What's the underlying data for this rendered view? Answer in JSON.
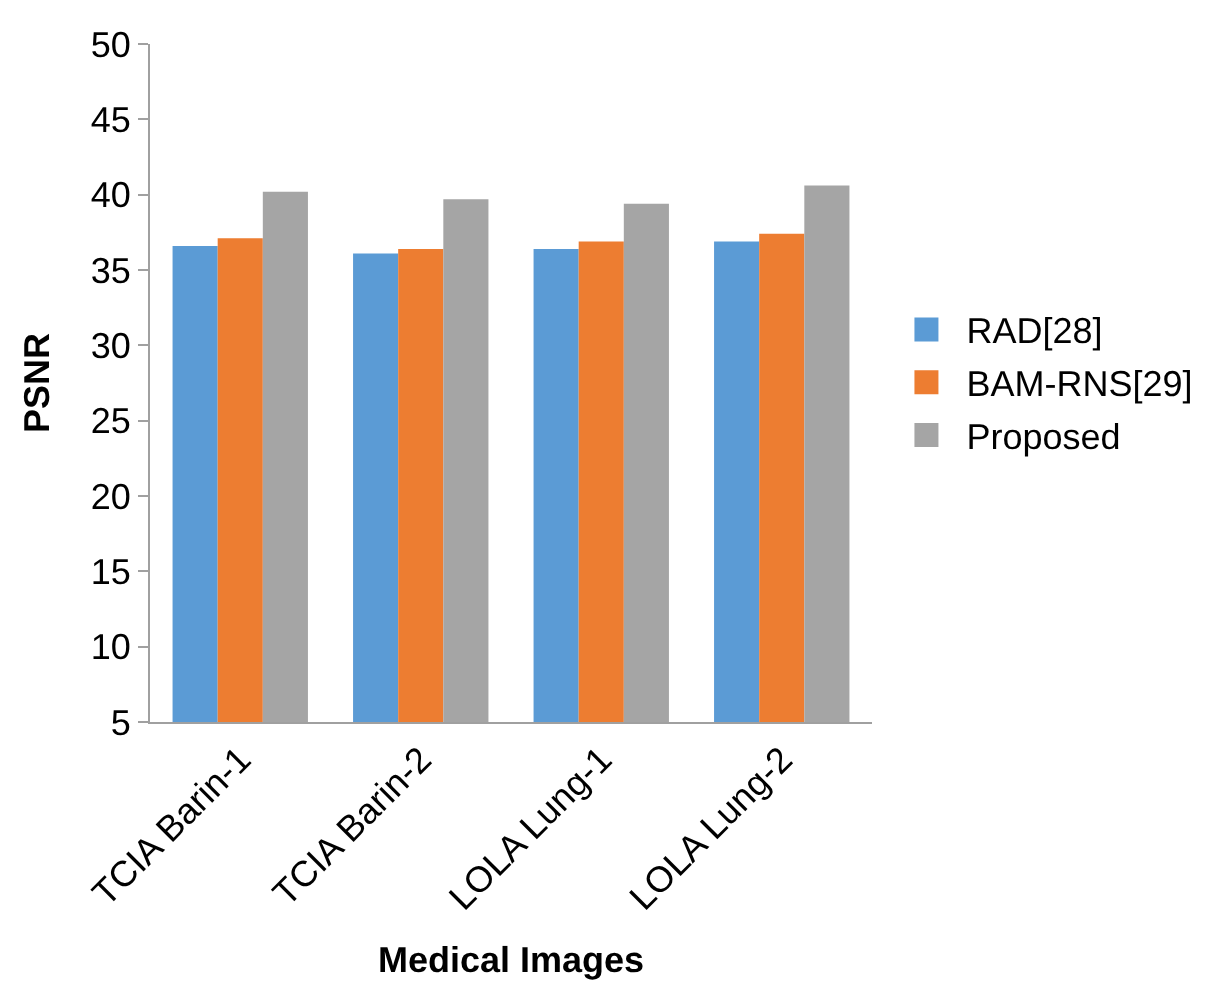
{
  "chart_data": {
    "type": "bar",
    "categories": [
      "TCIA Barin-1",
      "TCIA Barin-2",
      "LOLA Lung-1",
      "LOLA Lung-2"
    ],
    "series": [
      {
        "name": "RAD[28]",
        "color": "#5b9bd5",
        "values": [
          36.6,
          36.1,
          36.4,
          36.9
        ]
      },
      {
        "name": "BAM-RNS[29]",
        "color": "#ed7d31",
        "values": [
          37.1,
          36.4,
          36.9,
          37.4
        ]
      },
      {
        "name": "Proposed",
        "color": "#a5a5a5",
        "values": [
          40.2,
          39.7,
          39.4,
          40.6
        ]
      }
    ],
    "xlabel": "Medical Images",
    "ylabel": "PSNR",
    "ylim": [
      5,
      50
    ],
    "yticks": [
      5,
      10,
      15,
      20,
      25,
      30,
      35,
      40,
      45,
      50
    ],
    "grid": false,
    "legend": "right"
  }
}
